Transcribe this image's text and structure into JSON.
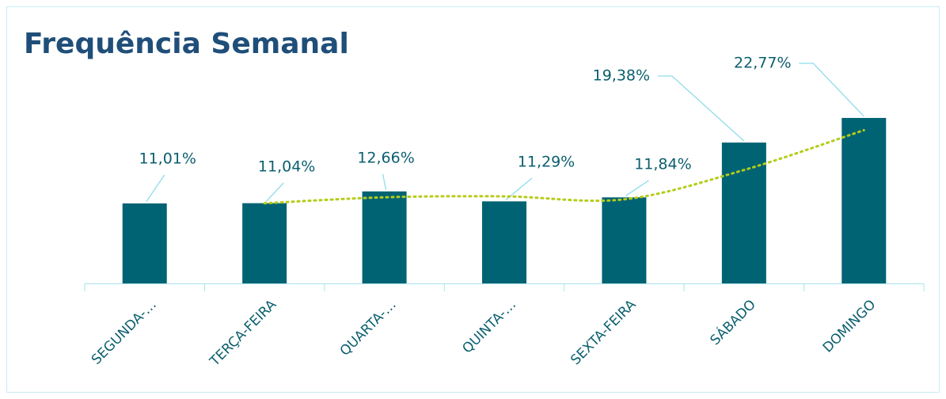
{
  "chart_data": {
    "type": "bar",
    "title": "Frequência Semanal",
    "categories": [
      "SEGUNDA-…",
      "TERÇA-FEIRA",
      "QUARTA-…",
      "QUINTA-…",
      "SEXTA-FEIRA",
      "SÁBADO",
      "DOMINGO"
    ],
    "values": [
      11.01,
      11.04,
      12.66,
      11.29,
      11.84,
      19.38,
      22.77
    ],
    "value_labels": [
      "11,01%",
      "11,04%",
      "12,66%",
      "11,29%",
      "11,84%",
      "19,38%",
      "22,77%"
    ],
    "color": "#006373",
    "ylim": [
      0,
      25
    ],
    "trendline": {
      "color": "#b5cc18",
      "values": [
        null,
        11.03,
        11.85,
        11.98,
        11.57,
        15.61,
        21.08
      ]
    }
  }
}
